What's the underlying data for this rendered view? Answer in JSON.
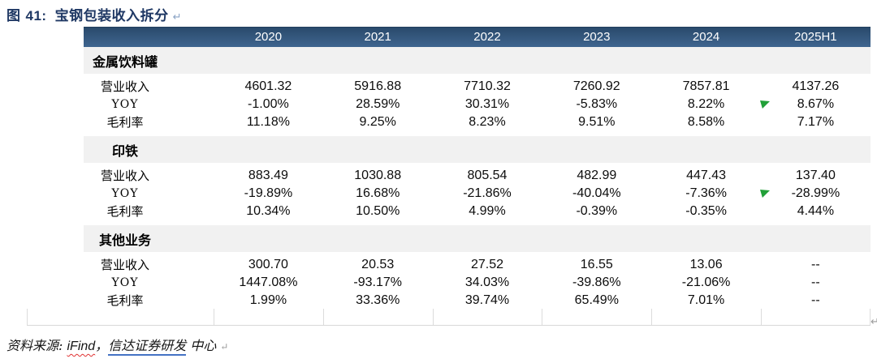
{
  "figure": {
    "label": "图",
    "number": "41:",
    "title": "宝钢包装收入拆分",
    "return_mark": "↵"
  },
  "table": {
    "years": [
      "2020",
      "2021",
      "2022",
      "2023",
      "2024",
      "2025H1"
    ],
    "row_labels": {
      "revenue": "营业收入",
      "yoy": "YOY",
      "gross_margin": "毛利率"
    },
    "sections": [
      {
        "name": "金属饮料罐",
        "revenue": [
          "4601.32",
          "5916.88",
          "7710.32",
          "7260.92",
          "7857.81",
          "4137.26"
        ],
        "yoy": [
          "-1.00%",
          "28.59%",
          "30.31%",
          "-5.83%",
          "8.22%",
          "8.67%"
        ],
        "gross_margin": [
          "11.18%",
          "9.25%",
          "8.23%",
          "9.51%",
          "8.58%",
          "7.17%"
        ],
        "yoy_flag": true
      },
      {
        "name": "印铁",
        "revenue": [
          "883.49",
          "1030.88",
          "805.54",
          "482.99",
          "447.43",
          "137.40"
        ],
        "yoy": [
          "-19.89%",
          "16.68%",
          "-21.86%",
          "-40.04%",
          "-7.36%",
          "-28.99%"
        ],
        "gross_margin": [
          "10.34%",
          "10.50%",
          "4.99%",
          "-0.39%",
          "-0.35%",
          "4.44%"
        ],
        "yoy_flag": true
      },
      {
        "name": "其他业务",
        "revenue": [
          "300.70",
          "20.53",
          "27.52",
          "16.55",
          "13.06",
          "--"
        ],
        "yoy": [
          "1447.08%",
          "-93.17%",
          "34.03%",
          "-39.86%",
          "-21.06%",
          "--"
        ],
        "gross_margin": [
          "1.99%",
          "33.36%",
          "39.74%",
          "65.49%",
          "7.01%",
          "--"
        ],
        "yoy_flag": false
      }
    ],
    "return_mark": "↵"
  },
  "footer": {
    "source_label": "资料来源: ",
    "source_ifind": "iFind",
    "separator": "，",
    "source_org": "信达证券研发",
    "source_suffix": " 中心",
    "return_mark": "↵"
  },
  "colors": {
    "header_bg": "#36597f",
    "band_bg": "#f1f1f1",
    "title_navy": "#1f3864",
    "flag_green": "#21a038",
    "link_underline_blue": "#4472c4",
    "spellcheck_red": "#e03131"
  }
}
